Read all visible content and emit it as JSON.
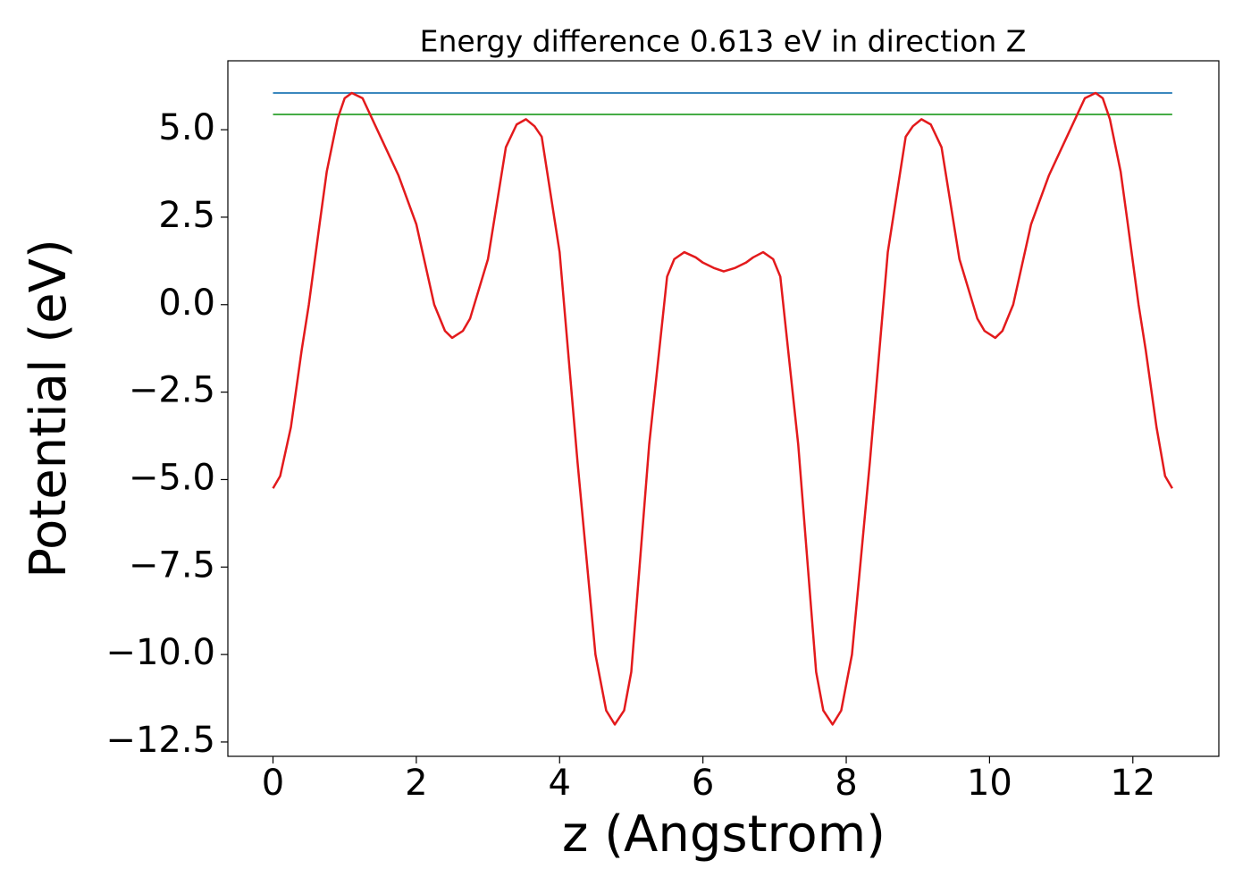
{
  "chart_data": {
    "type": "line",
    "title": "Energy difference 0.613 eV in direction Z",
    "x_label": "z (Angstrom)",
    "y_label": "Potential (eV)",
    "xlim": [
      -0.63,
      13.2
    ],
    "ylim": [
      -12.91,
      6.97
    ],
    "xticks": [
      0,
      2,
      4,
      6,
      8,
      10,
      12
    ],
    "yticks": [
      {
        "value": 5,
        "label": "5.0"
      },
      {
        "value": 2.5,
        "label": "2.5"
      },
      {
        "value": 0,
        "label": "0.0"
      },
      {
        "value": -2.5,
        "label": "−2.5"
      },
      {
        "value": -5,
        "label": "−5.0"
      },
      {
        "value": -7.5,
        "label": "−7.5"
      },
      {
        "value": -10,
        "label": "−10.0"
      },
      {
        "value": -12.5,
        "label": "−12.5"
      }
    ],
    "grid": false,
    "series": [
      {
        "color": "#1f77b4",
        "x": [
          0,
          12.55
        ],
        "values": [
          6.05,
          6.05
        ]
      },
      {
        "color": "#2ca02c",
        "x": [
          0,
          12.55
        ],
        "values": [
          5.437,
          5.437
        ]
      },
      {
        "color": "#e31a1c",
        "x": [
          0,
          0.1,
          0.25,
          0.4,
          0.5,
          0.65,
          0.75,
          0.9,
          1.0,
          1.1,
          1.25,
          1.5,
          1.75,
          2.0,
          2.25,
          2.4,
          2.5,
          2.65,
          2.75,
          3.0,
          3.25,
          3.4,
          3.53,
          3.65,
          3.75,
          4.0,
          4.25,
          4.5,
          4.65,
          4.77,
          4.9,
          5.0,
          5.25,
          5.5,
          5.6,
          5.74,
          5.9,
          6.0,
          6.15,
          6.29,
          6.45,
          6.6,
          6.7,
          6.84,
          6.98,
          7.08,
          7.33,
          7.58,
          7.68,
          7.81,
          7.93,
          8.08,
          8.33,
          8.58,
          8.83,
          8.93,
          9.05,
          9.18,
          9.33,
          9.58,
          9.83,
          9.93,
          10.08,
          10.18,
          10.33,
          10.58,
          10.83,
          11.08,
          11.33,
          11.48,
          11.58,
          11.68,
          11.83,
          11.93,
          12.08,
          12.18,
          12.33,
          12.45,
          12.55
        ],
        "values": [
          -5.25,
          -4.9,
          -3.5,
          -1.3,
          0.0,
          2.3,
          3.8,
          5.3,
          5.9,
          6.05,
          5.9,
          4.8,
          3.7,
          2.3,
          0.0,
          -0.75,
          -0.95,
          -0.75,
          -0.4,
          1.3,
          4.5,
          5.15,
          5.3,
          5.1,
          4.8,
          1.5,
          -4.5,
          -10.0,
          -11.6,
          -12.0,
          -11.6,
          -10.5,
          -4.0,
          0.8,
          1.3,
          1.5,
          1.35,
          1.2,
          1.05,
          0.95,
          1.05,
          1.2,
          1.35,
          1.5,
          1.3,
          0.8,
          -4.0,
          -10.5,
          -11.6,
          -12.0,
          -11.6,
          -10.0,
          -4.5,
          1.5,
          4.8,
          5.1,
          5.3,
          5.15,
          4.5,
          1.3,
          -0.4,
          -0.75,
          -0.95,
          -0.75,
          0.0,
          2.3,
          3.7,
          4.8,
          5.9,
          6.05,
          5.9,
          5.3,
          3.8,
          2.3,
          0.0,
          -1.3,
          -3.5,
          -4.9,
          -5.25
        ]
      }
    ]
  }
}
